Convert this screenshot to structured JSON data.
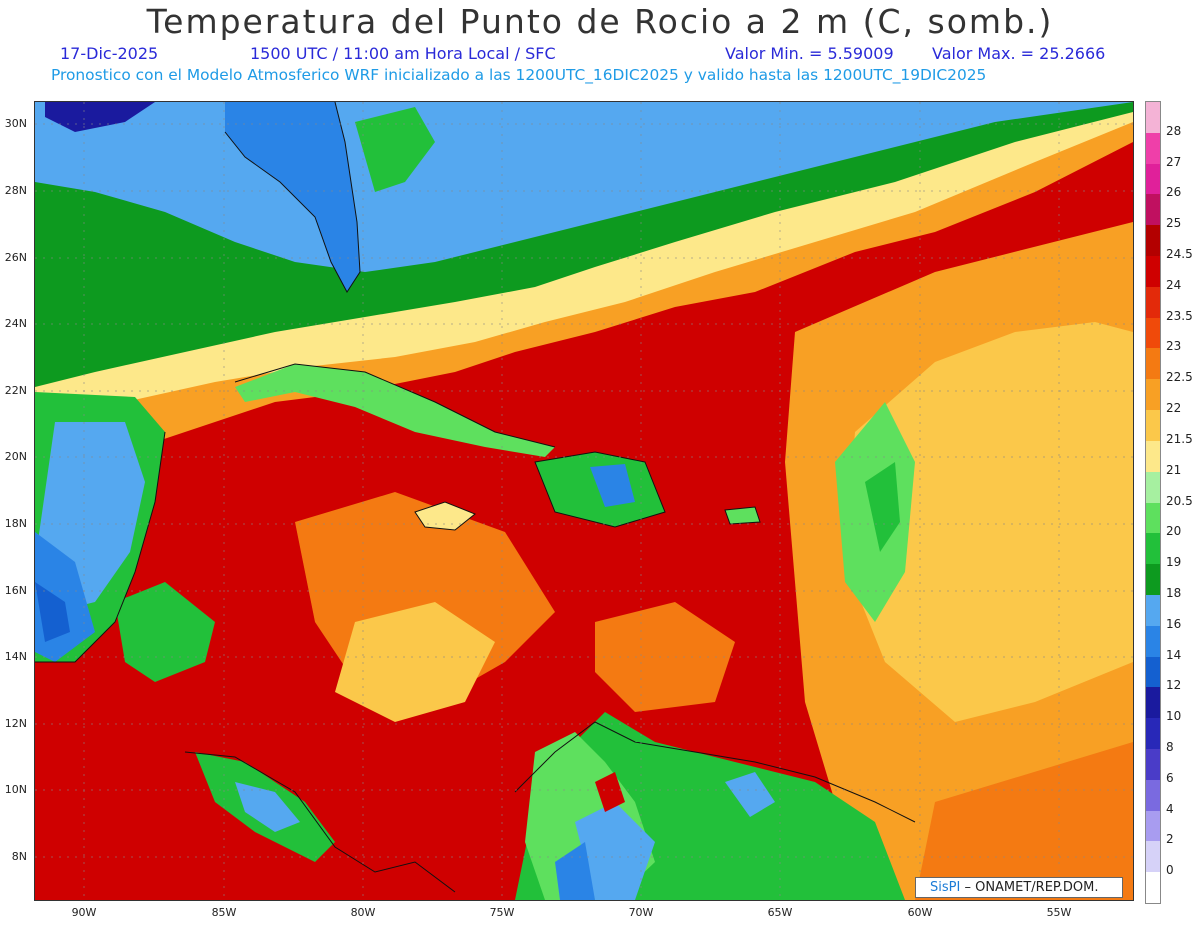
{
  "header": {
    "title": "Temperatura del Punto de Rocio a 2 m (C, somb.)",
    "date": "17-Dic-2025",
    "time_info": "1500 UTC / 11:00 am Hora Local / SFC",
    "min_value": "Valor Min. = 5.59009",
    "max_value": "Valor Max. = 25.2666",
    "model_info": "Pronostico con el Modelo Atmosferico WRF inicializado a las 1200UTC_16DIC2025 y valido hasta las  1200UTC_19DIC2025"
  },
  "axes": {
    "lat_labels": [
      "30N",
      "28N",
      "26N",
      "24N",
      "22N",
      "20N",
      "18N",
      "16N",
      "14N",
      "12N",
      "10N",
      "8N"
    ],
    "lon_labels": [
      "90W",
      "85W",
      "80W",
      "75W",
      "70W",
      "65W",
      "60W",
      "55W"
    ]
  },
  "colorbar": {
    "labels": [
      "28",
      "27",
      "26",
      "25",
      "24.5",
      "24",
      "23.5",
      "23",
      "22.5",
      "22",
      "21.5",
      "21",
      "20.5",
      "20",
      "19",
      "18",
      "16",
      "14",
      "12",
      "10",
      "8",
      "6",
      "4",
      "2",
      "0"
    ],
    "colors": [
      "#f4b3d6",
      "#ef3fa9",
      "#e0209a",
      "#c01060",
      "#b30000",
      "#cf0000",
      "#e32a0a",
      "#f04a0a",
      "#f47a12",
      "#f8a024",
      "#fbc84a",
      "#fde88a",
      "#a6f0a0",
      "#5ee05e",
      "#22c03a",
      "#0d9a1f",
      "#55a8f0",
      "#2a84e6",
      "#1460d0",
      "#1a1a9e",
      "#2828b8",
      "#4a3cc8",
      "#7a6ae0",
      "#a89cf0",
      "#d6d2f8",
      "#ffffff"
    ]
  },
  "credit": {
    "brand": "SisPI",
    "org": "– ONAMET/REP.DOM."
  }
}
